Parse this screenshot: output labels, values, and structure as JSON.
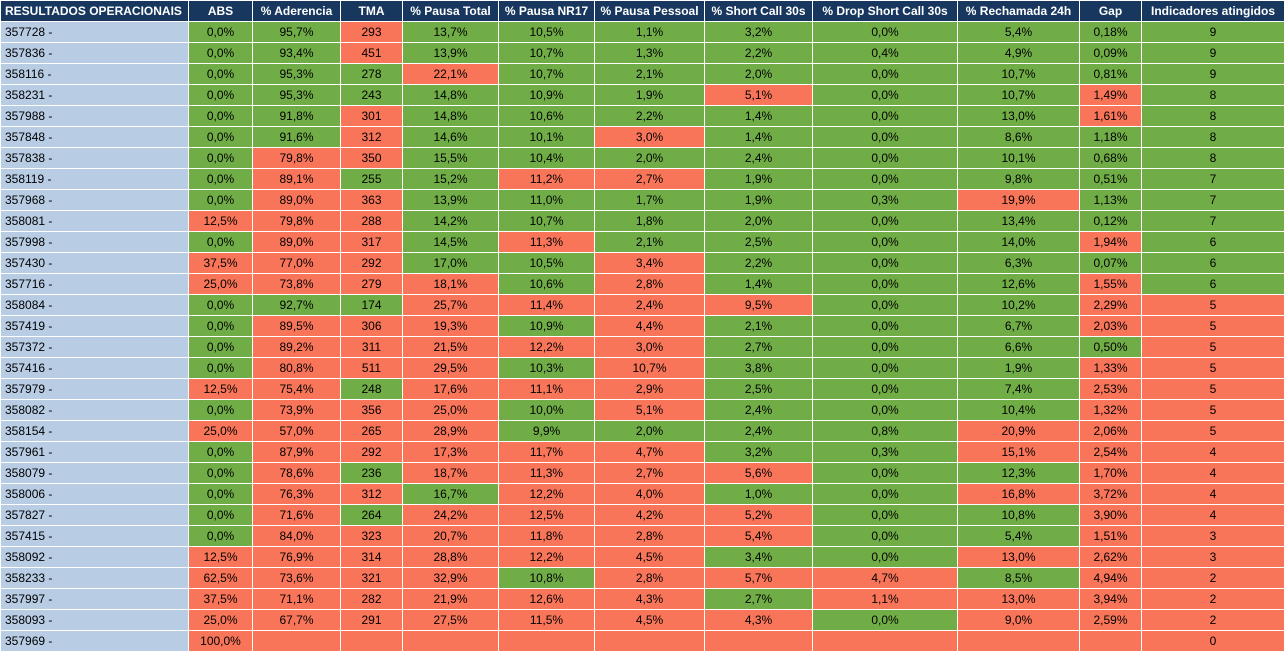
{
  "colors": {
    "header_bg": "#17375e",
    "id_bg": "#b8cce4",
    "good": "#70ad47",
    "bad": "#f87559"
  },
  "headers": [
    "RESULTADOS OPERACIONAIS",
    "ABS",
    "% Aderencia",
    "TMA",
    "% Pausa Total",
    "% Pausa NR17",
    "% Pausa Pessoal",
    "% Short Call 30s",
    "% Drop Short Call 30s",
    "% Rechamada 24h",
    "Gap",
    "Indicadores atingidos"
  ],
  "rows": [
    {
      "id": "357728 -",
      "vals": [
        "0,0%",
        "95,7%",
        "293",
        "13,7%",
        "10,5%",
        "1,1%",
        "3,2%",
        "0,0%",
        "5,4%",
        "0,18%",
        "9"
      ],
      "status": [
        "g",
        "g",
        "r",
        "g",
        "g",
        "g",
        "g",
        "g",
        "g",
        "g",
        "g"
      ]
    },
    {
      "id": "357836 -",
      "vals": [
        "0,0%",
        "93,4%",
        "451",
        "13,9%",
        "10,7%",
        "1,3%",
        "2,2%",
        "0,4%",
        "4,9%",
        "0,09%",
        "9"
      ],
      "status": [
        "g",
        "g",
        "r",
        "g",
        "g",
        "g",
        "g",
        "g",
        "g",
        "g",
        "g"
      ]
    },
    {
      "id": "358116 -",
      "vals": [
        "0,0%",
        "95,3%",
        "278",
        "22,1%",
        "10,7%",
        "2,1%",
        "2,0%",
        "0,0%",
        "10,7%",
        "0,81%",
        "9"
      ],
      "status": [
        "g",
        "g",
        "g",
        "r",
        "g",
        "g",
        "g",
        "g",
        "g",
        "g",
        "g"
      ]
    },
    {
      "id": "358231 -",
      "vals": [
        "0,0%",
        "95,3%",
        "243",
        "14,8%",
        "10,9%",
        "1,9%",
        "5,1%",
        "0,0%",
        "10,7%",
        "1,49%",
        "8"
      ],
      "status": [
        "g",
        "g",
        "g",
        "g",
        "g",
        "g",
        "r",
        "g",
        "g",
        "r",
        "g"
      ]
    },
    {
      "id": "357988 -",
      "vals": [
        "0,0%",
        "91,8%",
        "301",
        "14,8%",
        "10,6%",
        "2,2%",
        "1,4%",
        "0,0%",
        "13,0%",
        "1,61%",
        "8"
      ],
      "status": [
        "g",
        "g",
        "r",
        "g",
        "g",
        "g",
        "g",
        "g",
        "g",
        "r",
        "g"
      ]
    },
    {
      "id": "357848 -",
      "vals": [
        "0,0%",
        "91,6%",
        "312",
        "14,6%",
        "10,1%",
        "3,0%",
        "1,4%",
        "0,0%",
        "8,6%",
        "1,18%",
        "8"
      ],
      "status": [
        "g",
        "g",
        "r",
        "g",
        "g",
        "r",
        "g",
        "g",
        "g",
        "g",
        "g"
      ]
    },
    {
      "id": "357838 -",
      "vals": [
        "0,0%",
        "79,8%",
        "350",
        "15,5%",
        "10,4%",
        "2,0%",
        "2,4%",
        "0,0%",
        "10,1%",
        "0,68%",
        "8"
      ],
      "status": [
        "g",
        "r",
        "r",
        "g",
        "g",
        "g",
        "g",
        "g",
        "g",
        "g",
        "g"
      ]
    },
    {
      "id": "358119 -",
      "vals": [
        "0,0%",
        "89,1%",
        "255",
        "15,2%",
        "11,2%",
        "2,7%",
        "1,9%",
        "0,0%",
        "9,8%",
        "0,51%",
        "7"
      ],
      "status": [
        "g",
        "r",
        "g",
        "g",
        "r",
        "r",
        "g",
        "g",
        "g",
        "g",
        "g"
      ]
    },
    {
      "id": "357968 -",
      "vals": [
        "0,0%",
        "89,0%",
        "363",
        "13,9%",
        "11,0%",
        "1,7%",
        "1,9%",
        "0,3%",
        "19,9%",
        "1,13%",
        "7"
      ],
      "status": [
        "g",
        "r",
        "r",
        "g",
        "g",
        "g",
        "g",
        "g",
        "r",
        "g",
        "g"
      ]
    },
    {
      "id": "358081 -",
      "vals": [
        "12,5%",
        "79,8%",
        "288",
        "14,2%",
        "10,7%",
        "1,8%",
        "2,0%",
        "0,0%",
        "13,4%",
        "0,12%",
        "7"
      ],
      "status": [
        "r",
        "r",
        "r",
        "g",
        "g",
        "g",
        "g",
        "g",
        "g",
        "g",
        "g"
      ]
    },
    {
      "id": "357998 -",
      "vals": [
        "0,0%",
        "89,0%",
        "317",
        "14,5%",
        "11,3%",
        "2,1%",
        "2,5%",
        "0,0%",
        "14,0%",
        "1,94%",
        "6"
      ],
      "status": [
        "g",
        "r",
        "r",
        "g",
        "r",
        "g",
        "g",
        "g",
        "g",
        "r",
        "g"
      ]
    },
    {
      "id": "357430 -",
      "vals": [
        "37,5%",
        "77,0%",
        "292",
        "17,0%",
        "10,5%",
        "3,4%",
        "2,2%",
        "0,0%",
        "6,3%",
        "0,07%",
        "6"
      ],
      "status": [
        "r",
        "r",
        "r",
        "g",
        "g",
        "r",
        "g",
        "g",
        "g",
        "g",
        "g"
      ]
    },
    {
      "id": "357716 -",
      "vals": [
        "25,0%",
        "73,8%",
        "279",
        "18,1%",
        "10,6%",
        "2,8%",
        "1,4%",
        "0,0%",
        "12,6%",
        "1,55%",
        "6"
      ],
      "status": [
        "r",
        "r",
        "r",
        "r",
        "g",
        "r",
        "g",
        "g",
        "g",
        "r",
        "g"
      ]
    },
    {
      "id": "358084 -",
      "vals": [
        "0,0%",
        "92,7%",
        "174",
        "25,7%",
        "11,4%",
        "2,4%",
        "9,5%",
        "0,0%",
        "10,2%",
        "2,29%",
        "5"
      ],
      "status": [
        "g",
        "g",
        "g",
        "r",
        "r",
        "r",
        "r",
        "g",
        "g",
        "r",
        "r"
      ]
    },
    {
      "id": "357419 -",
      "vals": [
        "0,0%",
        "89,5%",
        "306",
        "19,3%",
        "10,9%",
        "4,4%",
        "2,1%",
        "0,0%",
        "6,7%",
        "2,03%",
        "5"
      ],
      "status": [
        "g",
        "r",
        "r",
        "r",
        "g",
        "r",
        "g",
        "g",
        "g",
        "r",
        "r"
      ]
    },
    {
      "id": "357372 -",
      "vals": [
        "0,0%",
        "89,2%",
        "311",
        "21,5%",
        "12,2%",
        "3,0%",
        "2,7%",
        "0,0%",
        "6,6%",
        "0,50%",
        "5"
      ],
      "status": [
        "g",
        "r",
        "r",
        "r",
        "r",
        "r",
        "g",
        "g",
        "g",
        "g",
        "r"
      ]
    },
    {
      "id": "357416 -",
      "vals": [
        "0,0%",
        "80,8%",
        "511",
        "29,5%",
        "10,3%",
        "10,7%",
        "3,8%",
        "0,0%",
        "1,9%",
        "1,33%",
        "5"
      ],
      "status": [
        "g",
        "r",
        "r",
        "r",
        "g",
        "r",
        "g",
        "g",
        "g",
        "r",
        "r"
      ]
    },
    {
      "id": "357979 -",
      "vals": [
        "12,5%",
        "75,4%",
        "248",
        "17,6%",
        "11,1%",
        "2,9%",
        "2,5%",
        "0,0%",
        "7,4%",
        "2,53%",
        "5"
      ],
      "status": [
        "r",
        "r",
        "g",
        "r",
        "r",
        "r",
        "g",
        "g",
        "g",
        "r",
        "r"
      ]
    },
    {
      "id": "358082 -",
      "vals": [
        "0,0%",
        "73,9%",
        "356",
        "25,0%",
        "10,0%",
        "5,1%",
        "2,4%",
        "0,0%",
        "10,4%",
        "1,32%",
        "5"
      ],
      "status": [
        "g",
        "r",
        "r",
        "r",
        "g",
        "r",
        "g",
        "g",
        "g",
        "r",
        "r"
      ]
    },
    {
      "id": "358154 -",
      "vals": [
        "25,0%",
        "57,0%",
        "265",
        "28,9%",
        "9,9%",
        "2,0%",
        "2,4%",
        "0,8%",
        "20,9%",
        "2,06%",
        "5"
      ],
      "status": [
        "r",
        "r",
        "r",
        "r",
        "g",
        "g",
        "g",
        "g",
        "r",
        "r",
        "r"
      ]
    },
    {
      "id": "357961 -",
      "vals": [
        "0,0%",
        "87,9%",
        "292",
        "17,3%",
        "11,7%",
        "4,7%",
        "3,2%",
        "0,3%",
        "15,1%",
        "2,54%",
        "4"
      ],
      "status": [
        "g",
        "r",
        "r",
        "r",
        "r",
        "r",
        "g",
        "g",
        "r",
        "r",
        "r"
      ]
    },
    {
      "id": "358079 -",
      "vals": [
        "0,0%",
        "78,6%",
        "236",
        "18,7%",
        "11,3%",
        "2,7%",
        "5,6%",
        "0,0%",
        "12,3%",
        "1,70%",
        "4"
      ],
      "status": [
        "g",
        "r",
        "g",
        "r",
        "r",
        "r",
        "r",
        "g",
        "g",
        "r",
        "r"
      ]
    },
    {
      "id": "358006 -",
      "vals": [
        "0,0%",
        "76,3%",
        "312",
        "16,7%",
        "12,2%",
        "4,0%",
        "1,0%",
        "0,0%",
        "16,8%",
        "3,72%",
        "4"
      ],
      "status": [
        "g",
        "r",
        "r",
        "g",
        "r",
        "r",
        "g",
        "g",
        "r",
        "r",
        "r"
      ]
    },
    {
      "id": "357827 -",
      "vals": [
        "0,0%",
        "71,6%",
        "264",
        "24,2%",
        "12,5%",
        "4,2%",
        "5,2%",
        "0,0%",
        "10,8%",
        "3,90%",
        "4"
      ],
      "status": [
        "g",
        "r",
        "g",
        "r",
        "r",
        "r",
        "r",
        "g",
        "g",
        "r",
        "r"
      ]
    },
    {
      "id": "357415 -",
      "vals": [
        "0,0%",
        "84,0%",
        "323",
        "20,7%",
        "11,8%",
        "2,8%",
        "5,4%",
        "0,0%",
        "5,4%",
        "1,51%",
        "3"
      ],
      "status": [
        "g",
        "r",
        "r",
        "r",
        "r",
        "r",
        "r",
        "g",
        "g",
        "r",
        "r"
      ]
    },
    {
      "id": "358092 -",
      "vals": [
        "12,5%",
        "76,9%",
        "314",
        "28,8%",
        "12,2%",
        "4,5%",
        "3,4%",
        "0,0%",
        "13,0%",
        "2,62%",
        "3"
      ],
      "status": [
        "r",
        "r",
        "r",
        "r",
        "r",
        "r",
        "g",
        "g",
        "r",
        "r",
        "r"
      ]
    },
    {
      "id": "358233 -",
      "vals": [
        "62,5%",
        "73,6%",
        "321",
        "32,9%",
        "10,8%",
        "2,8%",
        "5,7%",
        "4,7%",
        "8,5%",
        "4,94%",
        "2"
      ],
      "status": [
        "r",
        "r",
        "r",
        "r",
        "g",
        "r",
        "r",
        "r",
        "g",
        "r",
        "r"
      ]
    },
    {
      "id": "357997 -",
      "vals": [
        "37,5%",
        "71,1%",
        "282",
        "21,9%",
        "12,6%",
        "4,3%",
        "2,7%",
        "1,1%",
        "13,0%",
        "3,94%",
        "2"
      ],
      "status": [
        "r",
        "r",
        "r",
        "r",
        "r",
        "r",
        "g",
        "r",
        "r",
        "r",
        "r"
      ]
    },
    {
      "id": "358093 -",
      "vals": [
        "25,0%",
        "67,7%",
        "291",
        "27,5%",
        "11,5%",
        "4,5%",
        "4,3%",
        "0,0%",
        "9,0%",
        "2,59%",
        "2"
      ],
      "status": [
        "r",
        "r",
        "r",
        "r",
        "r",
        "r",
        "r",
        "g",
        "r",
        "r",
        "r"
      ]
    },
    {
      "id": "357969 -",
      "vals": [
        "100,0%",
        "",
        "",
        "",
        "",
        "",
        "",
        "",
        "",
        "",
        "0"
      ],
      "status": [
        "r",
        "r",
        "r",
        "r",
        "r",
        "r",
        "r",
        "r",
        "r",
        "r",
        "r"
      ]
    }
  ]
}
